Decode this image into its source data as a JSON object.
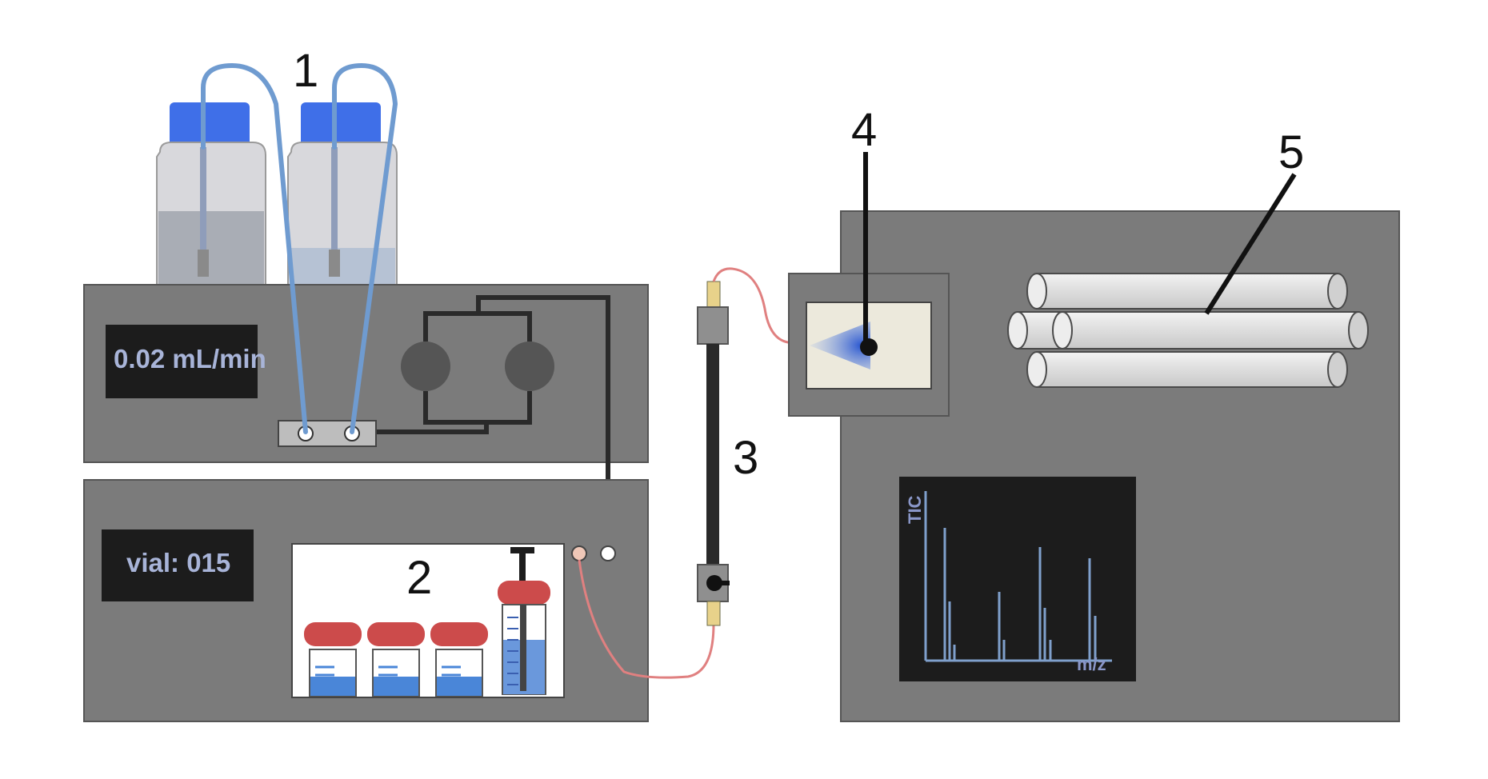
{
  "labels": {
    "n1": "1",
    "n2": "2",
    "n3": "3",
    "n4": "4",
    "n5": "5"
  },
  "pump": {
    "flow_display": "0.02 mL/min"
  },
  "autosampler": {
    "vial_display": "vial: 015"
  },
  "ms_screen": {
    "y_label": "TIC",
    "x_label": "m/z"
  },
  "colors": {
    "module_gray": "#7b7b7b",
    "display_dark": "#1c1c1c",
    "bottle_cap": "#3f6fe8",
    "tubing_blue": "#6f9bd0",
    "tubing_red": "#e08080",
    "vial_cap": "#cc4b4b",
    "solvent_blue": "#4a86d8",
    "spectrum_blue": "#7fa0cc"
  }
}
